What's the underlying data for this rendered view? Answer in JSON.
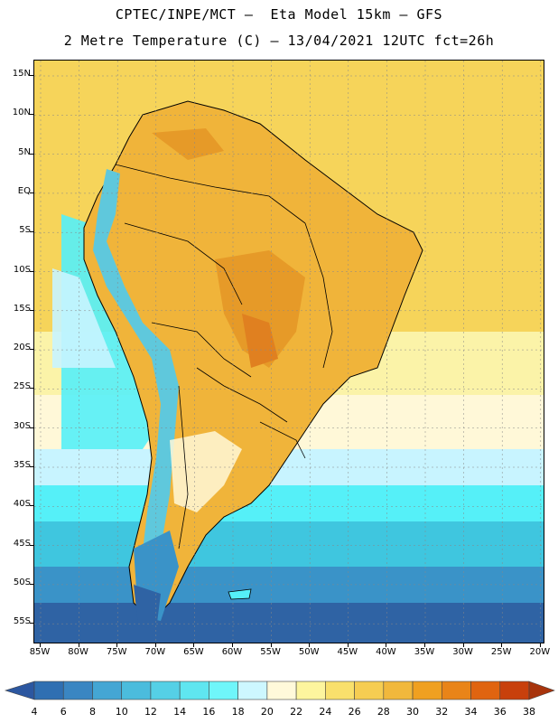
{
  "header": {
    "line1": "CPTEC/INPE/MCT –  Eta Model 15km – GFS",
    "line2": "2 Metre Temperature (C) – 13/04/2021 12UTC fct=26h"
  },
  "map": {
    "lat_labels": [
      "15N",
      "10N",
      "5N",
      "EQ",
      "5S",
      "10S",
      "15S",
      "20S",
      "25S",
      "30S",
      "35S",
      "40S",
      "45S",
      "50S",
      "55S"
    ],
    "lon_labels": [
      "85W",
      "80W",
      "75W",
      "70W",
      "65W",
      "60W",
      "55W",
      "50W",
      "45W",
      "40W",
      "35W",
      "30W",
      "25W",
      "20W"
    ],
    "colors": {
      "ocean_north": "#f6d45a",
      "ocean_warm": "#f5c84c",
      "land_hot": "#e69a28",
      "land_warm": "#f0b43a",
      "andes": "#5fc8dc",
      "pale_yellow": "#fbf3a8",
      "cream": "#fff8d8",
      "light_cyan": "#c8f4ff",
      "cyan": "#55f0f8",
      "teal": "#3fc6df",
      "blue": "#3a93c8",
      "dark_blue": "#2f63a4"
    }
  },
  "legend": {
    "labels": [
      "4",
      "6",
      "8",
      "10",
      "12",
      "14",
      "16",
      "18",
      "20",
      "22",
      "24",
      "26",
      "28",
      "30",
      "32",
      "34",
      "36",
      "38"
    ],
    "colors": [
      "#2c57a0",
      "#2f6fb2",
      "#3a86c2",
      "#44a6d4",
      "#4bbcdd",
      "#55d0e6",
      "#5fe6f0",
      "#6ff6fa",
      "#cdf7ff",
      "#fff9da",
      "#fdf59e",
      "#f9e06c",
      "#f6cd52",
      "#f1b83c",
      "#f0a020",
      "#e98418",
      "#e06410",
      "#c8400c",
      "#a8340c"
    ]
  }
}
